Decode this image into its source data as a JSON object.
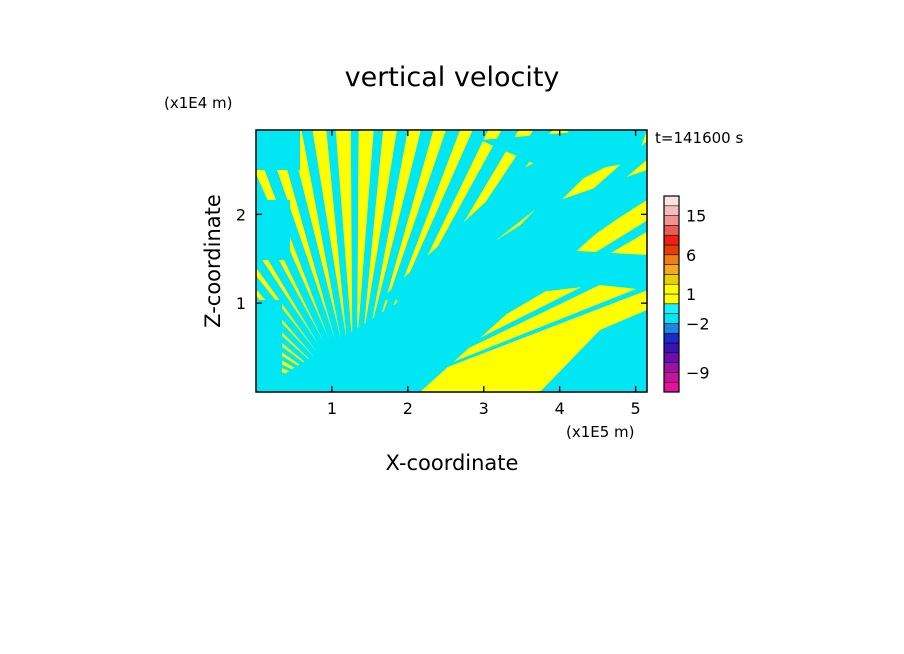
{
  "chart_data": {
    "type": "heatmap",
    "title": "vertical velocity",
    "xlabel": "X-coordinate",
    "ylabel": "Z-coordinate",
    "x_unit": "(x1E5 m)",
    "y_unit": "(x1E4 m)",
    "time_label": "t=141600 s",
    "xlim": [
      0,
      5.15
    ],
    "ylim": [
      0,
      2.95
    ],
    "x_ticks": [
      1,
      2,
      3,
      4,
      5
    ],
    "y_ticks": [
      1,
      2
    ],
    "colorbar": {
      "levels": [
        -12,
        -10.5,
        -9,
        -7.5,
        -6,
        -4.5,
        -3,
        -2,
        -1,
        0,
        1,
        2,
        3,
        4.5,
        6,
        7.5,
        9,
        12,
        15,
        18,
        24
      ],
      "colors": [
        "#e6119a",
        "#c7139c",
        "#9c12a6",
        "#6a0db3",
        "#3a13b0",
        "#1a2cc8",
        "#1f86e0",
        "#00e6f2",
        "#19f1ff",
        "#ffff00",
        "#fffd00",
        "#e6d200",
        "#f5a623",
        "#ef7f10",
        "#e43d0b",
        "#ee2010",
        "#ea5c56",
        "#f09490",
        "#f8bcbc",
        "#fde2e2"
      ],
      "tick_labels": [
        "15",
        "6",
        "1",
        "−2",
        "−9"
      ],
      "tick_values": [
        15,
        6,
        1,
        -2,
        -9
      ]
    },
    "field_colors": {
      "positive": "#ffff00",
      "negative": "#00e6f2"
    },
    "description_values": "Alternating positive (yellow) and negative (cyan) vertical velocity bands radiating upward from x≈1.3E5 m"
  }
}
